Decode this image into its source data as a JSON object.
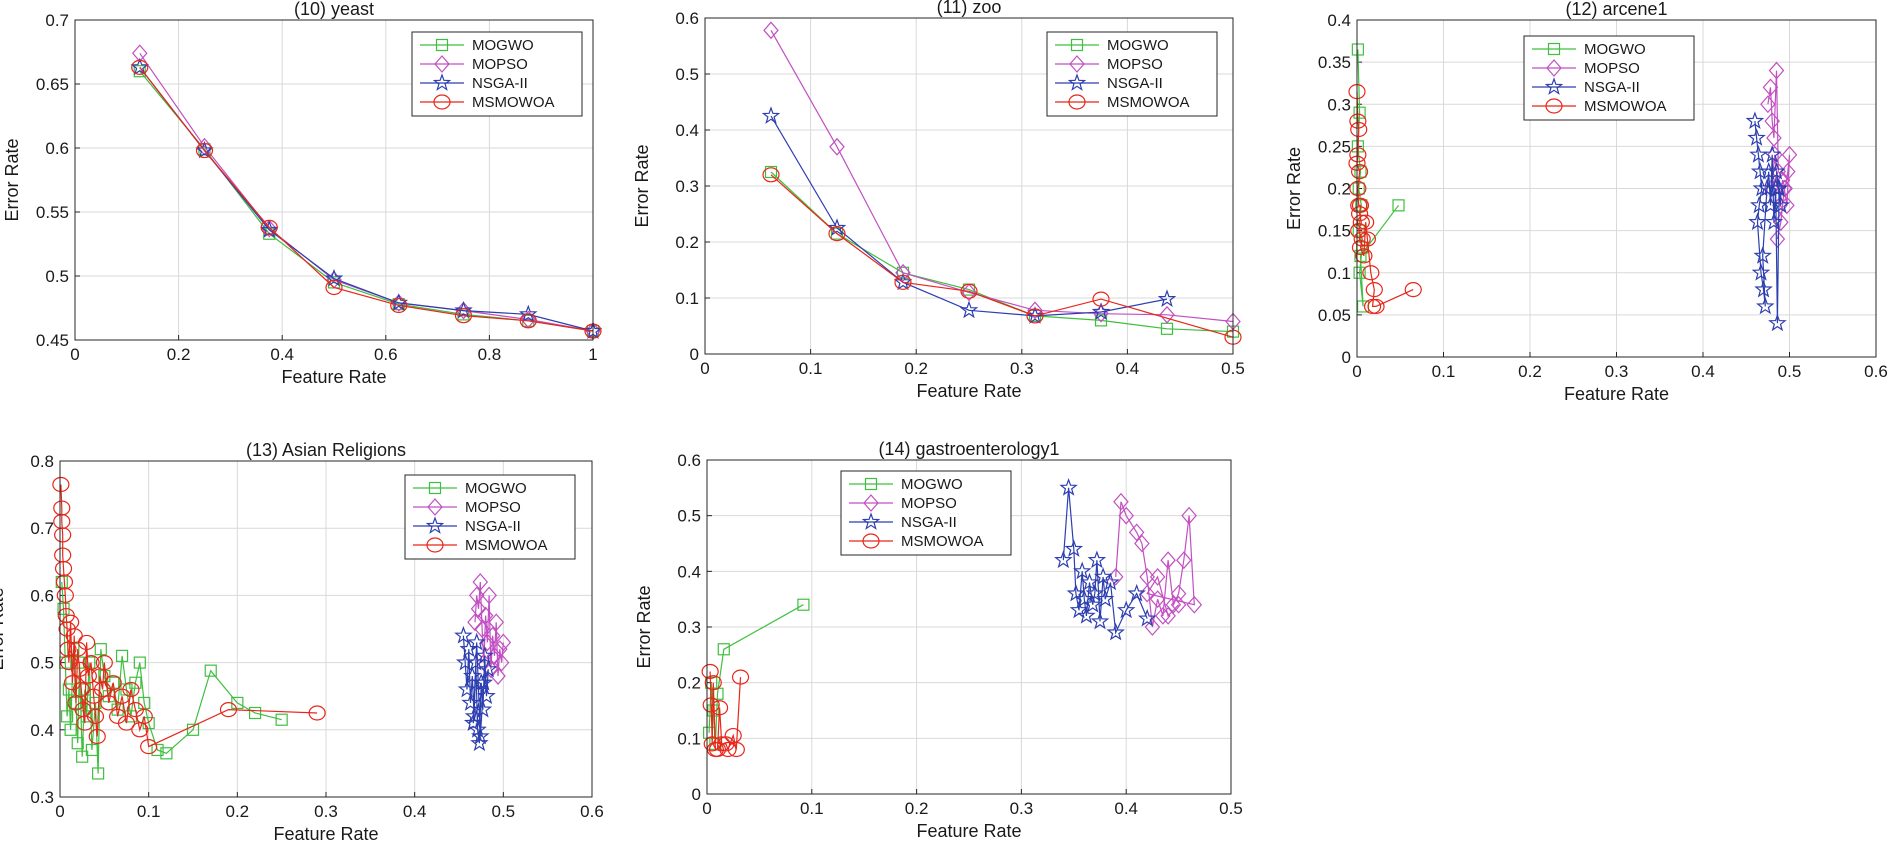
{
  "colors": {
    "MOGWO": "#3fbf3f",
    "MOPSO": "#c24fc2",
    "NSGA-II": "#2d3fb0",
    "MSMOWOA": "#e8261a",
    "grid": "#d9d9d9",
    "axis": "#262626"
  },
  "chart_data": [
    {
      "type": "line",
      "title": "(10) yeast",
      "xlabel": "Feature Rate",
      "ylabel": "Error Rate",
      "xlim": [
        0,
        1
      ],
      "ylim": [
        0.45,
        0.7
      ],
      "xticks": [
        "0",
        "0.2",
        "0.4",
        "0.6",
        "0.8",
        "1"
      ],
      "yticks": [
        "0.45",
        "0.5",
        "0.55",
        "0.6",
        "0.65",
        "0.7"
      ],
      "legend_position": "top-right",
      "series": [
        {
          "name": "MOGWO",
          "x": [
            0.125,
            0.25,
            0.375,
            0.5,
            0.625,
            0.75,
            0.875,
            1
          ],
          "y": [
            0.66,
            0.599,
            0.533,
            0.495,
            0.478,
            0.47,
            0.465,
            0.457
          ]
        },
        {
          "name": "MOPSO",
          "x": [
            0.125,
            0.25,
            0.375,
            0.5,
            0.625,
            0.75,
            0.875,
            1
          ],
          "y": [
            0.674,
            0.601,
            0.537,
            0.497,
            0.479,
            0.473,
            0.466,
            0.457
          ]
        },
        {
          "name": "NSGA-II",
          "x": [
            0.125,
            0.25,
            0.375,
            0.5,
            0.625,
            0.75,
            0.875,
            1
          ],
          "y": [
            0.663,
            0.598,
            0.536,
            0.498,
            0.479,
            0.473,
            0.47,
            0.457
          ]
        },
        {
          "name": "MSMOWOA",
          "x": [
            0.125,
            0.25,
            0.375,
            0.5,
            0.625,
            0.75,
            0.875,
            1
          ],
          "y": [
            0.663,
            0.598,
            0.538,
            0.491,
            0.477,
            0.469,
            0.465,
            0.457
          ]
        }
      ]
    },
    {
      "type": "line",
      "title": "(11) zoo",
      "xlabel": "Feature Rate",
      "ylabel": "Error Rate",
      "xlim": [
        0,
        0.5
      ],
      "ylim": [
        0,
        0.6
      ],
      "xticks": [
        "0",
        "0.1",
        "0.2",
        "0.3",
        "0.4",
        "0.5"
      ],
      "yticks": [
        "0",
        "0.1",
        "0.2",
        "0.3",
        "0.4",
        "0.5",
        "0.6"
      ],
      "legend_position": "top-right",
      "series": [
        {
          "name": "MOGWO",
          "x": [
            0.0625,
            0.125,
            0.1875,
            0.25,
            0.3125,
            0.375,
            0.4375,
            0.5
          ],
          "y": [
            0.325,
            0.215,
            0.145,
            0.115,
            0.068,
            0.06,
            0.045,
            0.04
          ]
        },
        {
          "name": "MOPSO",
          "x": [
            0.0625,
            0.125,
            0.1875,
            0.25,
            0.3125,
            0.375,
            0.4375,
            0.5
          ],
          "y": [
            0.578,
            0.37,
            0.145,
            0.11,
            0.078,
            0.072,
            0.07,
            0.058
          ]
        },
        {
          "name": "NSGA-II",
          "x": [
            0.0625,
            0.125,
            0.1875,
            0.25,
            0.3125,
            0.375,
            0.4375
          ],
          "y": [
            0.425,
            0.225,
            0.128,
            0.078,
            0.068,
            0.075,
            0.098
          ]
        },
        {
          "name": "MSMOWOA",
          "x": [
            0.0625,
            0.125,
            0.1875,
            0.25,
            0.3125,
            0.375,
            0.5
          ],
          "y": [
            0.32,
            0.215,
            0.128,
            0.112,
            0.068,
            0.098,
            0.03
          ]
        }
      ]
    },
    {
      "type": "line",
      "title": "(12) arcene1",
      "xlabel": "Feature Rate",
      "ylabel": "Error Rate",
      "xlim": [
        0,
        0.6
      ],
      "ylim": [
        0,
        0.4
      ],
      "xticks": [
        "0",
        "0.1",
        "0.2",
        "0.3",
        "0.4",
        "0.5",
        "0.6"
      ],
      "yticks": [
        "0",
        "0.05",
        "0.1",
        "0.15",
        "0.2",
        "0.25",
        "0.3",
        "0.35",
        "0.4"
      ],
      "legend_position": "top-left",
      "series": [
        {
          "name": "MOGWO",
          "x": [
            0.001,
            0.003,
            0.001,
            0.004,
            0.002,
            0.005,
            0.002,
            0.006,
            0.003,
            0.007,
            0.004,
            0.048
          ],
          "y": [
            0.365,
            0.29,
            0.25,
            0.22,
            0.2,
            0.18,
            0.15,
            0.13,
            0.1,
            0.06,
            0.12,
            0.18
          ]
        },
        {
          "name": "MOPSO",
          "x": [
            0.475,
            0.478,
            0.48,
            0.482,
            0.485,
            0.487,
            0.479,
            0.483,
            0.489,
            0.492,
            0.495,
            0.498,
            0.5,
            0.497,
            0.494,
            0.49,
            0.486
          ],
          "y": [
            0.3,
            0.32,
            0.28,
            0.26,
            0.34,
            0.22,
            0.2,
            0.24,
            0.18,
            0.21,
            0.2,
            0.22,
            0.24,
            0.18,
            0.2,
            0.16,
            0.14
          ]
        },
        {
          "name": "NSGA-II",
          "x": [
            0.46,
            0.462,
            0.464,
            0.466,
            0.468,
            0.465,
            0.463,
            0.467,
            0.47,
            0.472,
            0.469,
            0.474,
            0.476,
            0.478,
            0.48,
            0.482,
            0.484,
            0.486,
            0.488,
            0.49,
            0.485,
            0.487
          ],
          "y": [
            0.28,
            0.26,
            0.24,
            0.22,
            0.2,
            0.18,
            0.16,
            0.1,
            0.08,
            0.06,
            0.12,
            0.2,
            0.22,
            0.18,
            0.24,
            0.16,
            0.2,
            0.04,
            0.2,
            0.18,
            0.22,
            0.2
          ]
        },
        {
          "name": "MSMOWOA",
          "x": [
            0.0,
            0.001,
            0.002,
            0.001,
            0.0,
            0.003,
            0.001,
            0.002,
            0.004,
            0.003,
            0.005,
            0.002,
            0.006,
            0.004,
            0.008,
            0.01,
            0.012,
            0.016,
            0.02,
            0.018,
            0.022,
            0.065
          ],
          "y": [
            0.315,
            0.28,
            0.27,
            0.24,
            0.23,
            0.22,
            0.2,
            0.18,
            0.18,
            0.17,
            0.16,
            0.15,
            0.14,
            0.13,
            0.12,
            0.16,
            0.14,
            0.1,
            0.08,
            0.06,
            0.06,
            0.08
          ]
        }
      ]
    },
    {
      "type": "line",
      "title": "(13) Asian Religions",
      "xlabel": "Feature Rate",
      "ylabel": "Error Rate",
      "xlim": [
        0,
        0.6
      ],
      "ylim": [
        0.3,
        0.8
      ],
      "xticks": [
        "0",
        "0.1",
        "0.2",
        "0.3",
        "0.4",
        "0.5",
        "0.6"
      ],
      "yticks": [
        "0.3",
        "0.4",
        "0.5",
        "0.6",
        "0.7",
        "0.8"
      ],
      "legend_position": "top-right",
      "series": [
        {
          "name": "MOGWO",
          "x": [
            0.002,
            0.004,
            0.006,
            0.008,
            0.01,
            0.012,
            0.015,
            0.018,
            0.02,
            0.022,
            0.025,
            0.028,
            0.03,
            0.033,
            0.036,
            0.04,
            0.043,
            0.046,
            0.05,
            0.055,
            0.06,
            0.065,
            0.07,
            0.075,
            0.08,
            0.085,
            0.09,
            0.095,
            0.1,
            0.11,
            0.12,
            0.15,
            0.17,
            0.2,
            0.22,
            0.25
          ],
          "y": [
            0.62,
            0.58,
            0.5,
            0.42,
            0.46,
            0.4,
            0.52,
            0.44,
            0.38,
            0.5,
            0.36,
            0.46,
            0.42,
            0.5,
            0.37,
            0.44,
            0.335,
            0.52,
            0.48,
            0.45,
            0.47,
            0.43,
            0.51,
            0.46,
            0.42,
            0.47,
            0.5,
            0.44,
            0.41,
            0.37,
            0.365,
            0.4,
            0.488,
            0.44,
            0.425,
            0.415
          ]
        },
        {
          "name": "MOPSO",
          "x": [
            0.468,
            0.47,
            0.472,
            0.474,
            0.476,
            0.478,
            0.48,
            0.482,
            0.484,
            0.486,
            0.488,
            0.49,
            0.492,
            0.494,
            0.496,
            0.498,
            0.5
          ],
          "y": [
            0.56,
            0.6,
            0.58,
            0.62,
            0.55,
            0.5,
            0.57,
            0.53,
            0.6,
            0.49,
            0.54,
            0.51,
            0.56,
            0.48,
            0.52,
            0.5,
            0.53
          ]
        },
        {
          "name": "NSGA-II",
          "x": [
            0.455,
            0.457,
            0.459,
            0.461,
            0.463,
            0.465,
            0.467,
            0.469,
            0.471,
            0.473,
            0.475,
            0.477,
            0.479,
            0.481,
            0.483,
            0.466,
            0.47,
            0.474,
            0.478
          ],
          "y": [
            0.54,
            0.5,
            0.46,
            0.52,
            0.44,
            0.48,
            0.42,
            0.5,
            0.4,
            0.38,
            0.47,
            0.43,
            0.51,
            0.45,
            0.49,
            0.41,
            0.53,
            0.39,
            0.47
          ]
        },
        {
          "name": "MSMOWOA",
          "x": [
            0.001,
            0.002,
            0.002,
            0.003,
            0.003,
            0.004,
            0.005,
            0.006,
            0.007,
            0.008,
            0.009,
            0.01,
            0.012,
            0.014,
            0.016,
            0.018,
            0.02,
            0.022,
            0.024,
            0.026,
            0.028,
            0.03,
            0.032,
            0.035,
            0.038,
            0.04,
            0.042,
            0.045,
            0.048,
            0.05,
            0.055,
            0.06,
            0.065,
            0.07,
            0.075,
            0.08,
            0.085,
            0.09,
            0.095,
            0.1,
            0.19,
            0.29
          ],
          "y": [
            0.765,
            0.73,
            0.71,
            0.69,
            0.66,
            0.64,
            0.62,
            0.6,
            0.57,
            0.55,
            0.52,
            0.5,
            0.56,
            0.47,
            0.54,
            0.44,
            0.52,
            0.49,
            0.46,
            0.43,
            0.41,
            0.53,
            0.48,
            0.5,
            0.45,
            0.42,
            0.39,
            0.48,
            0.46,
            0.5,
            0.44,
            0.47,
            0.42,
            0.45,
            0.41,
            0.46,
            0.43,
            0.4,
            0.42,
            0.375,
            0.43,
            0.425
          ]
        }
      ]
    },
    {
      "type": "line",
      "title": "(14) gastroenterology1",
      "xlabel": "Feature Rate",
      "ylabel": "Error Rate",
      "xlim": [
        0,
        0.5
      ],
      "ylim": [
        0,
        0.6
      ],
      "xticks": [
        "0",
        "0.1",
        "0.2",
        "0.3",
        "0.4",
        "0.5"
      ],
      "yticks": [
        "0",
        "0.1",
        "0.2",
        "0.3",
        "0.4",
        "0.5",
        "0.6"
      ],
      "legend_position": "top-left",
      "series": [
        {
          "name": "MOGWO",
          "x": [
            0.002,
            0.004,
            0.006,
            0.008,
            0.01,
            0.016,
            0.092
          ],
          "y": [
            0.11,
            0.2,
            0.15,
            0.09,
            0.18,
            0.26,
            0.34
          ]
        },
        {
          "name": "MOPSO",
          "x": [
            0.39,
            0.395,
            0.4,
            0.41,
            0.415,
            0.42,
            0.425,
            0.43,
            0.435,
            0.44,
            0.445,
            0.45,
            0.455,
            0.46,
            0.465,
            0.42,
            0.43,
            0.44,
            0.45
          ],
          "y": [
            0.39,
            0.525,
            0.5,
            0.47,
            0.45,
            0.39,
            0.3,
            0.35,
            0.32,
            0.42,
            0.34,
            0.36,
            0.42,
            0.5,
            0.34,
            0.36,
            0.39,
            0.32,
            0.34
          ]
        },
        {
          "name": "NSGA-II",
          "x": [
            0.34,
            0.345,
            0.35,
            0.352,
            0.355,
            0.358,
            0.36,
            0.362,
            0.365,
            0.368,
            0.37,
            0.372,
            0.375,
            0.378,
            0.38,
            0.385,
            0.39,
            0.4,
            0.41,
            0.42
          ],
          "y": [
            0.42,
            0.55,
            0.44,
            0.36,
            0.33,
            0.4,
            0.35,
            0.32,
            0.38,
            0.34,
            0.36,
            0.42,
            0.31,
            0.39,
            0.35,
            0.38,
            0.29,
            0.33,
            0.36,
            0.315
          ]
        },
        {
          "name": "MSMOWOA",
          "x": [
            0.003,
            0.004,
            0.005,
            0.006,
            0.008,
            0.01,
            0.012,
            0.014,
            0.018,
            0.02,
            0.025,
            0.028,
            0.032
          ],
          "y": [
            0.22,
            0.16,
            0.09,
            0.2,
            0.08,
            0.08,
            0.155,
            0.09,
            0.09,
            0.08,
            0.105,
            0.08,
            0.21
          ]
        }
      ]
    }
  ]
}
